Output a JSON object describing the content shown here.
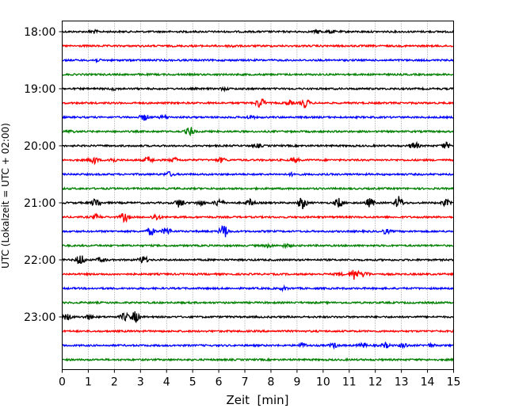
{
  "chart_data": {
    "type": "line",
    "title": "",
    "xlabel": "Zeit  [min]",
    "ylabel": "UTC (Lokalzeit = UTC + 02:00)",
    "xlim": [
      0,
      15
    ],
    "x_ticks": [
      "0",
      "1",
      "2",
      "3",
      "4",
      "5",
      "6",
      "7",
      "8",
      "9",
      "10",
      "11",
      "12",
      "13",
      "14",
      "15"
    ],
    "y_tick_labels": [
      "18:00",
      "19:00",
      "20:00",
      "21:00",
      "22:00",
      "23:00"
    ],
    "grid": "vertical dotted",
    "trace_colors": [
      "#000000",
      "#ff0000",
      "#0000ff",
      "#008000"
    ],
    "traces": [
      {
        "start": "18:00",
        "color": "#000000",
        "events": [
          [
            1.2,
            2
          ],
          [
            9.8,
            2
          ],
          [
            10.3,
            2
          ]
        ]
      },
      {
        "start": "18:15",
        "color": "#ff0000",
        "events": [
          [
            6.5,
            1.5
          ]
        ]
      },
      {
        "start": "18:30",
        "color": "#0000ff",
        "events": [
          [
            1.3,
            1.5
          ]
        ]
      },
      {
        "start": "18:45",
        "color": "#008000",
        "events": []
      },
      {
        "start": "19:00",
        "color": "#000000",
        "events": [
          [
            2.0,
            1.5
          ],
          [
            6.2,
            1.5
          ]
        ]
      },
      {
        "start": "19:15",
        "color": "#ff0000",
        "events": [
          [
            7.6,
            7
          ],
          [
            8.7,
            3
          ],
          [
            9.3,
            6
          ]
        ]
      },
      {
        "start": "19:30",
        "color": "#0000ff",
        "events": [
          [
            3.15,
            4
          ],
          [
            3.9,
            2
          ],
          [
            7.2,
            2
          ]
        ]
      },
      {
        "start": "19:45",
        "color": "#008000",
        "events": [
          [
            4.9,
            6
          ],
          [
            0.3,
            1.5
          ]
        ]
      },
      {
        "start": "20:00",
        "color": "#000000",
        "events": [
          [
            13.5,
            5
          ],
          [
            14.7,
            4
          ],
          [
            7.5,
            2
          ]
        ]
      },
      {
        "start": "20:15",
        "color": "#ff0000",
        "events": [
          [
            1.2,
            5
          ],
          [
            1.9,
            3
          ],
          [
            3.3,
            4
          ],
          [
            4.3,
            3
          ],
          [
            6.1,
            3
          ],
          [
            8.9,
            3
          ]
        ]
      },
      {
        "start": "20:30",
        "color": "#0000ff",
        "events": [
          [
            4.1,
            3
          ],
          [
            8.8,
            1.5
          ]
        ]
      },
      {
        "start": "20:45",
        "color": "#008000",
        "events": []
      },
      {
        "start": "21:00",
        "color": "#000000",
        "events": [
          [
            1.3,
            6
          ],
          [
            4.5,
            6
          ],
          [
            5.3,
            3
          ],
          [
            6.0,
            5
          ],
          [
            7.2,
            4
          ],
          [
            9.2,
            8
          ],
          [
            10.6,
            6
          ],
          [
            11.8,
            6
          ],
          [
            12.9,
            8
          ],
          [
            14.7,
            4
          ]
        ]
      },
      {
        "start": "21:15",
        "color": "#ff0000",
        "events": [
          [
            1.3,
            3
          ],
          [
            2.4,
            6
          ],
          [
            3.6,
            4
          ]
        ]
      },
      {
        "start": "21:30",
        "color": "#0000ff",
        "events": [
          [
            3.4,
            5
          ],
          [
            4.0,
            5
          ],
          [
            6.2,
            9
          ],
          [
            12.4,
            3
          ]
        ]
      },
      {
        "start": "21:45",
        "color": "#008000",
        "events": [
          [
            7.9,
            2
          ],
          [
            8.6,
            2
          ]
        ]
      },
      {
        "start": "22:00",
        "color": "#000000",
        "events": [
          [
            0.7,
            7
          ],
          [
            1.5,
            3
          ],
          [
            3.1,
            5
          ]
        ]
      },
      {
        "start": "22:15",
        "color": "#ff0000",
        "events": [
          [
            10.6,
            2
          ],
          [
            11.2,
            8
          ],
          [
            11.6,
            4
          ]
        ]
      },
      {
        "start": "22:30",
        "color": "#0000ff",
        "events": [
          [
            8.5,
            2
          ]
        ]
      },
      {
        "start": "22:45",
        "color": "#008000",
        "events": []
      },
      {
        "start": "23:00",
        "color": "#000000",
        "events": [
          [
            0.2,
            4
          ],
          [
            1.0,
            3
          ],
          [
            2.4,
            5
          ],
          [
            2.8,
            7
          ]
        ]
      },
      {
        "start": "23:15",
        "color": "#ff0000",
        "events": []
      },
      {
        "start": "23:30",
        "color": "#0000ff",
        "events": [
          [
            9.2,
            3
          ],
          [
            10.4,
            3
          ],
          [
            11.5,
            3
          ],
          [
            12.4,
            3
          ],
          [
            13.1,
            3
          ],
          [
            14.1,
            2
          ]
        ]
      },
      {
        "start": "23:45",
        "color": "#008000",
        "events": []
      }
    ]
  }
}
